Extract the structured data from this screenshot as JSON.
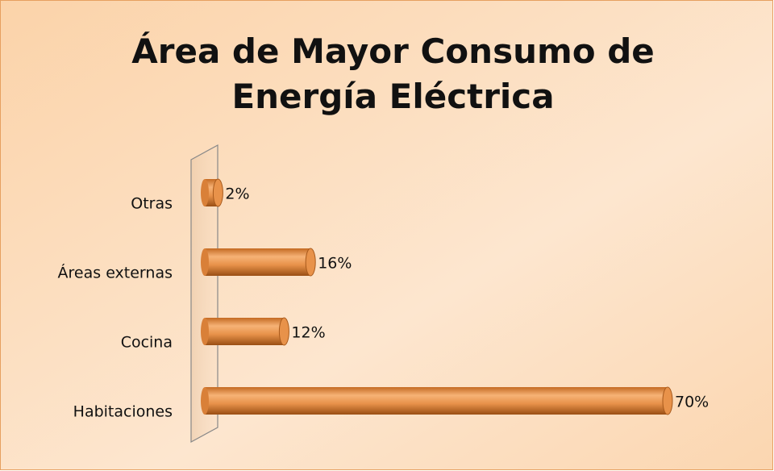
{
  "chart_data": {
    "type": "bar",
    "orientation": "horizontal",
    "title": "Área de Mayor Consumo de Energía Eléctrica",
    "categories": [
      "Habitaciones",
      "Cocina",
      "Áreas externas",
      "Otras"
    ],
    "values": [
      70,
      12,
      16,
      2
    ],
    "value_labels": [
      "70%",
      "12%",
      "16%",
      "2%"
    ],
    "color": "#e8924a"
  }
}
